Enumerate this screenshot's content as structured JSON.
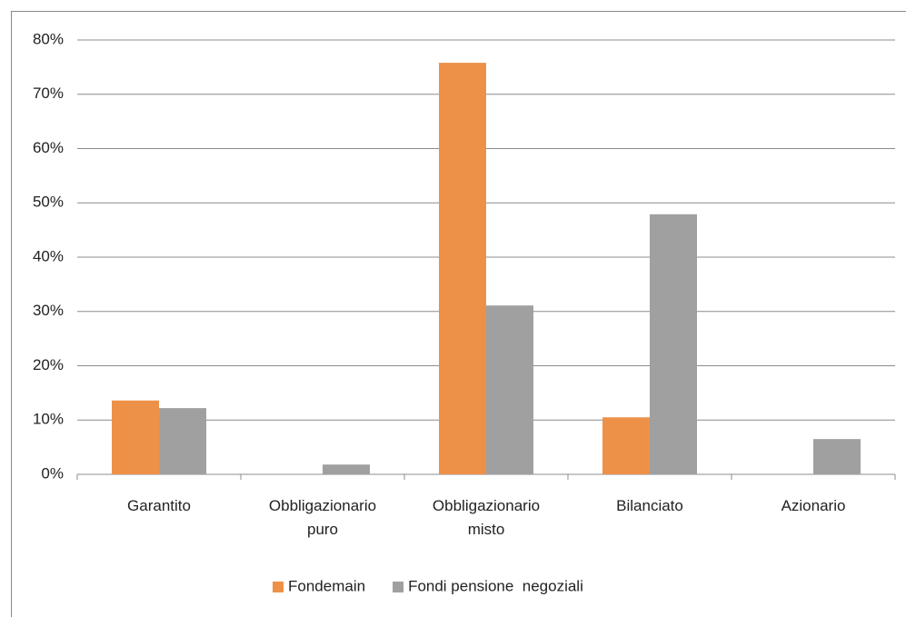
{
  "chart_data": {
    "type": "bar",
    "categories": [
      "Garantito",
      "Obbligazionario puro",
      "Obbligazionario misto",
      "Bilanciato",
      "Azionario"
    ],
    "series": [
      {
        "name": "Fondemain",
        "color": "#ee9148",
        "values": [
          13.6,
          0,
          75.8,
          10.5,
          0
        ]
      },
      {
        "name": "Fondi pensione  negoziali",
        "color": "#a0a0a0",
        "values": [
          12.2,
          1.8,
          31.1,
          47.9,
          6.5
        ]
      }
    ],
    "ylim": [
      0,
      80
    ],
    "yticks": [
      {
        "value": 0,
        "label": "0%"
      },
      {
        "value": 10,
        "label": "10%"
      },
      {
        "value": 20,
        "label": "20%"
      },
      {
        "value": 30,
        "label": "30%"
      },
      {
        "value": 40,
        "label": "40%"
      },
      {
        "value": 50,
        "label": "50%"
      },
      {
        "value": 60,
        "label": "60%"
      },
      {
        "value": 70,
        "label": "70%"
      },
      {
        "value": 80,
        "label": "80%"
      }
    ],
    "grid": true,
    "legend": "bottom"
  }
}
